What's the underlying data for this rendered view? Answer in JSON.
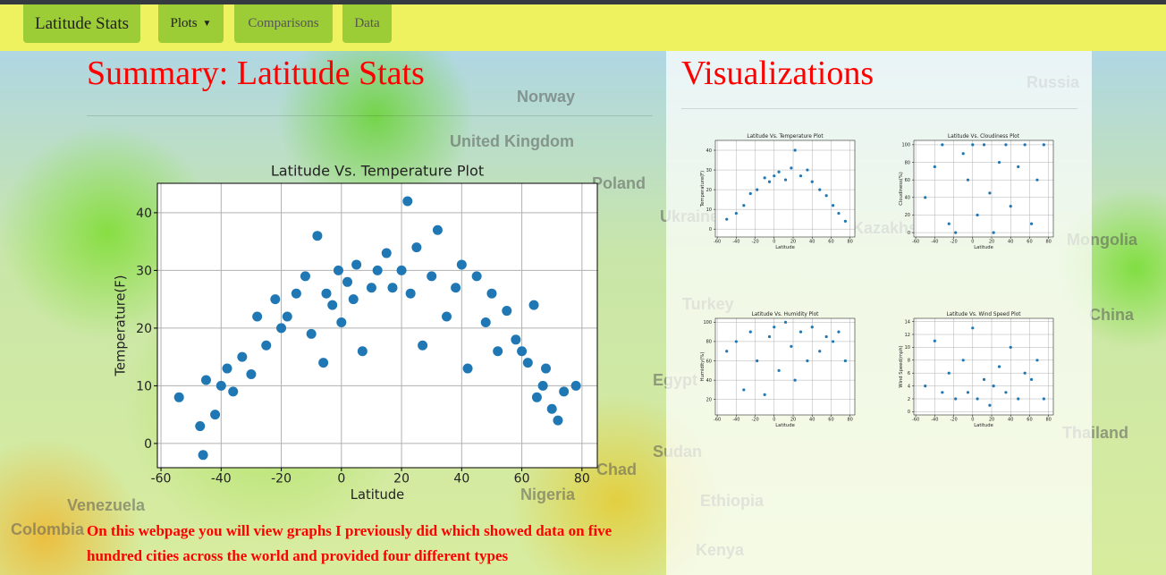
{
  "nav": {
    "brand": "Latitude Stats",
    "items": [
      "Plots",
      "Comparisons",
      "Data"
    ]
  },
  "background_map": {
    "labels": [
      "Norway",
      "United Kingdom",
      "Poland",
      "Ukraine",
      "Kazakhstan",
      "Russia",
      "Mongolia",
      "China",
      "Turkey",
      "Egypt",
      "Sudan",
      "Chad",
      "Nigeria",
      "Venezuela",
      "Colombia",
      "Ethiopia",
      "Kenya",
      "Thailand"
    ]
  },
  "summary": {
    "title": "Summary: Latitude Stats",
    "chart": {
      "type": "scatter",
      "title": "Latitude Vs. Temperature Plot",
      "x_label": "Latitude",
      "y_label": "Temperature(F)",
      "color": "#1f77b4",
      "grid": true,
      "x": [
        -54,
        -47,
        -46,
        -45,
        -42,
        -40,
        -38,
        -36,
        -33,
        -30,
        -28,
        -25,
        -22,
        -20,
        -18,
        -15,
        -12,
        -10,
        -8,
        -6,
        -5,
        -3,
        -1,
        0,
        2,
        4,
        5,
        7,
        10,
        12,
        15,
        17,
        20,
        22,
        23,
        25,
        27,
        30,
        32,
        35,
        38,
        40,
        42,
        45,
        48,
        50,
        52,
        55,
        58,
        60,
        62,
        64,
        65,
        67,
        68,
        70,
        72,
        74,
        78
      ],
      "values": [
        8,
        3,
        -2,
        11,
        5,
        10,
        13,
        9,
        15,
        12,
        22,
        17,
        25,
        20,
        22,
        26,
        29,
        19,
        36,
        14,
        26,
        24,
        30,
        21,
        28,
        25,
        31,
        16,
        27,
        30,
        33,
        27,
        30,
        42,
        26,
        34,
        17,
        29,
        37,
        22,
        27,
        31,
        13,
        29,
        21,
        26,
        16,
        23,
        18,
        16,
        14,
        24,
        8,
        10,
        13,
        6,
        4,
        9,
        10
      ],
      "xlim": [
        -61.2,
        85.1
      ],
      "ylim": [
        -4.2,
        45.1
      ],
      "xticks": [
        -60,
        -40,
        -20,
        0,
        20,
        40,
        60,
        80
      ],
      "yticks": [
        0,
        10,
        20,
        30,
        40
      ]
    },
    "text": "On this webpage you will view graphs I previously did which showed data on five hundred cities across the world and provided four different types"
  },
  "visualizations": {
    "title": "Visualizations",
    "charts": [
      {
        "type": "scatter",
        "title": "Latitude Vs. Temperature Plot",
        "x_label": "Latitude",
        "y_label": "Temperature(F)",
        "color": "#1f77b4",
        "grid": true,
        "x": [
          -50,
          -40,
          -32,
          -25,
          -18,
          -10,
          -5,
          0,
          5,
          12,
          18,
          22,
          28,
          35,
          40,
          48,
          55,
          62,
          68,
          75
        ],
        "values": [
          5,
          8,
          12,
          18,
          20,
          26,
          24,
          27,
          29,
          25,
          31,
          40,
          27,
          30,
          24,
          20,
          17,
          12,
          8,
          4
        ],
        "xlim": [
          -62,
          85
        ],
        "ylim": [
          -4,
          45
        ],
        "xticks": [
          -60,
          -40,
          -20,
          0,
          20,
          40,
          60,
          80
        ],
        "yticks": [
          0,
          10,
          20,
          30,
          40
        ]
      },
      {
        "type": "scatter",
        "title": "Latitude Vs. Cloudiness Plot",
        "x_label": "Latitude",
        "y_label": "Cloudiness(%)",
        "color": "#1f77b4",
        "grid": true,
        "x": [
          -50,
          -40,
          -32,
          -25,
          -18,
          -10,
          -5,
          0,
          5,
          12,
          18,
          22,
          28,
          35,
          40,
          48,
          55,
          62,
          68,
          75
        ],
        "values": [
          40,
          75,
          100,
          10,
          0,
          90,
          60,
          100,
          20,
          100,
          45,
          0,
          80,
          100,
          30,
          75,
          100,
          10,
          60,
          100
        ],
        "xlim": [
          -62,
          85
        ],
        "ylim": [
          -5,
          105
        ],
        "xticks": [
          -60,
          -40,
          -20,
          0,
          20,
          40,
          60,
          80
        ],
        "yticks": [
          0,
          20,
          40,
          60,
          80,
          100
        ]
      },
      {
        "type": "scatter",
        "title": "Latitude Vs. Humidity Plot",
        "x_label": "Latitude",
        "y_label": "Humidity(%)",
        "color": "#1f77b4",
        "grid": true,
        "x": [
          -50,
          -40,
          -32,
          -25,
          -18,
          -10,
          -5,
          0,
          5,
          12,
          18,
          22,
          28,
          35,
          40,
          48,
          55,
          62,
          68,
          75
        ],
        "values": [
          70,
          80,
          30,
          90,
          60,
          25,
          85,
          95,
          50,
          100,
          75,
          40,
          90,
          60,
          95,
          70,
          85,
          80,
          90,
          60
        ],
        "xlim": [
          -62,
          85
        ],
        "ylim": [
          4,
          104
        ],
        "xticks": [
          -60,
          -40,
          -20,
          0,
          20,
          40,
          60,
          80
        ],
        "yticks": [
          20,
          40,
          60,
          80,
          100
        ]
      },
      {
        "type": "scatter",
        "title": "Latitude Vs. Wind Speed Plot",
        "x_label": "Latitude",
        "y_label": "Wind Speed(mph)",
        "color": "#1f77b4",
        "grid": true,
        "x": [
          -50,
          -40,
          -32,
          -25,
          -18,
          -10,
          -5,
          0,
          5,
          12,
          18,
          22,
          28,
          35,
          40,
          48,
          55,
          62,
          68,
          75
        ],
        "values": [
          4,
          11,
          3,
          6,
          2,
          8,
          3,
          13,
          2,
          5,
          1,
          4,
          7,
          3,
          10,
          2,
          6,
          5,
          8,
          2
        ],
        "xlim": [
          -62,
          85
        ],
        "ylim": [
          -0.5,
          14.5
        ],
        "xticks": [
          -60,
          -40,
          -20,
          0,
          20,
          40,
          60,
          80
        ],
        "yticks": [
          0,
          2,
          4,
          6,
          8,
          10,
          12,
          14
        ]
      }
    ]
  }
}
